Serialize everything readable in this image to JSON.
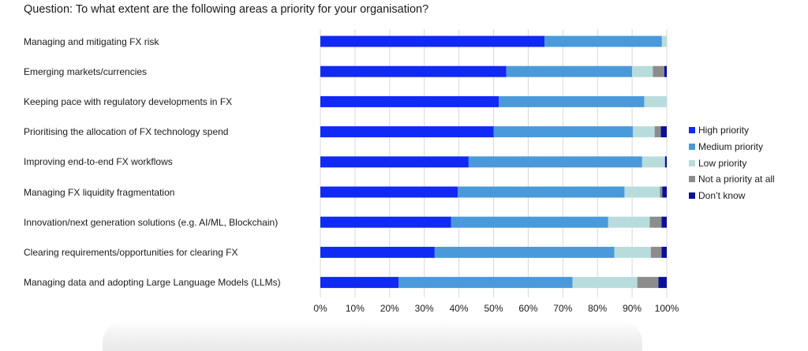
{
  "question": "Question: To what extent are the following areas a priority for your organisation?",
  "chart_data": {
    "type": "bar",
    "orientation": "horizontal",
    "stacked": true,
    "title": "Question: To what extent are the following areas a priority for your organisation?",
    "xlabel": "",
    "ylabel": "",
    "xlim": [
      0,
      100
    ],
    "x_ticks": [
      "0%",
      "10%",
      "20%",
      "30%",
      "40%",
      "50%",
      "60%",
      "70%",
      "80%",
      "90%",
      "100%"
    ],
    "grid": "vertical",
    "legend_position": "right",
    "categories": [
      "Managing and mitigating FX risk",
      "Emerging markets/currencies",
      "Keeping pace with regulatory developments in FX",
      "Prioritising the allocation of FX technology spend",
      "Improving end-to-end FX workflows",
      "Managing FX liquidity fragmentation",
      "Innovation/next generation solutions (e.g. AI/ML, Blockchain)",
      "Clearing requirements/opportunities for clearing FX",
      "Managing data and adopting Large Language Models (LLMs)"
    ],
    "series": [
      {
        "name": "High priority",
        "color": "#1029f5",
        "values": [
          64.7,
          53.7,
          51.5,
          50,
          42.8,
          39.7,
          37.7,
          33,
          22.6
        ]
      },
      {
        "name": "Medium priority",
        "color": "#4a9adb",
        "values": [
          33.9,
          36.3,
          42,
          40.2,
          50.1,
          48.1,
          45.4,
          51.9,
          50.2
        ]
      },
      {
        "name": "Low priority",
        "color": "#b8dcdc",
        "values": [
          1.4,
          6,
          6.5,
          6.3,
          6.6,
          10.2,
          12,
          10.5,
          18.7
        ]
      },
      {
        "name": "Not a priority at all",
        "color": "#8c8c8c",
        "values": [
          0,
          3.3,
          0,
          1.8,
          0,
          0.7,
          3.4,
          3.1,
          6.1
        ]
      },
      {
        "name": "Don’t know",
        "color": "#0a109a",
        "values": [
          0,
          0.7,
          0,
          1.7,
          0.5,
          1.3,
          1.5,
          1.5,
          2.4
        ]
      }
    ]
  }
}
